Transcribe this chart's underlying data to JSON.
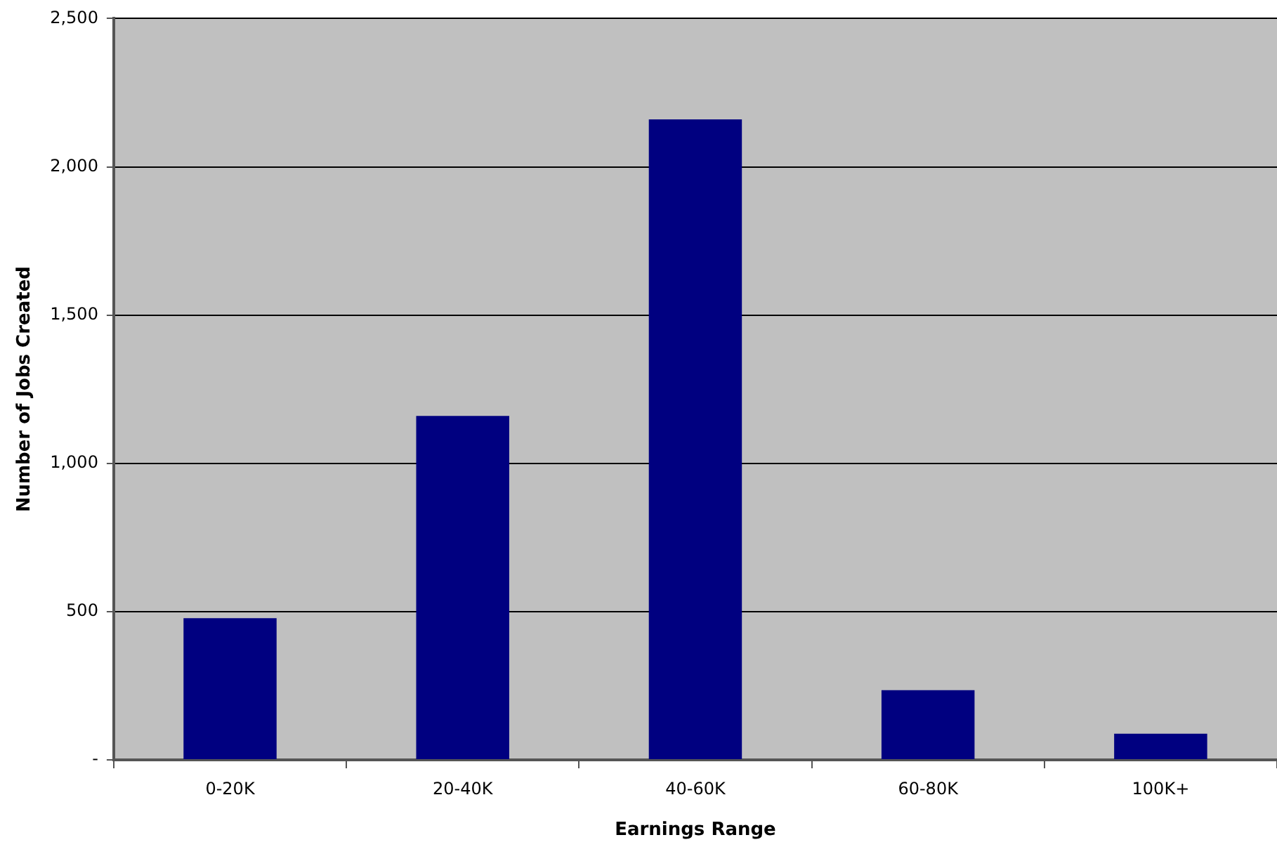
{
  "chart_data": {
    "type": "bar",
    "xlabel": "Earnings Range",
    "ylabel": "Number of Jobs Created",
    "categories": [
      "0-20K",
      "20-40K",
      "40-60K",
      "60-80K",
      "100K+"
    ],
    "values": [
      478,
      1160,
      2160,
      235,
      88
    ],
    "color": "#000080",
    "ylim": [
      0,
      2500
    ],
    "yticks": [
      {
        "value": 0,
        "label": "-"
      },
      {
        "value": 500,
        "label": "500"
      },
      {
        "value": 1000,
        "label": "1,000"
      },
      {
        "value": 1500,
        "label": "1,500"
      },
      {
        "value": 2000,
        "label": "2,000"
      },
      {
        "value": 2500,
        "label": "2,500"
      }
    ],
    "grid": "y"
  }
}
